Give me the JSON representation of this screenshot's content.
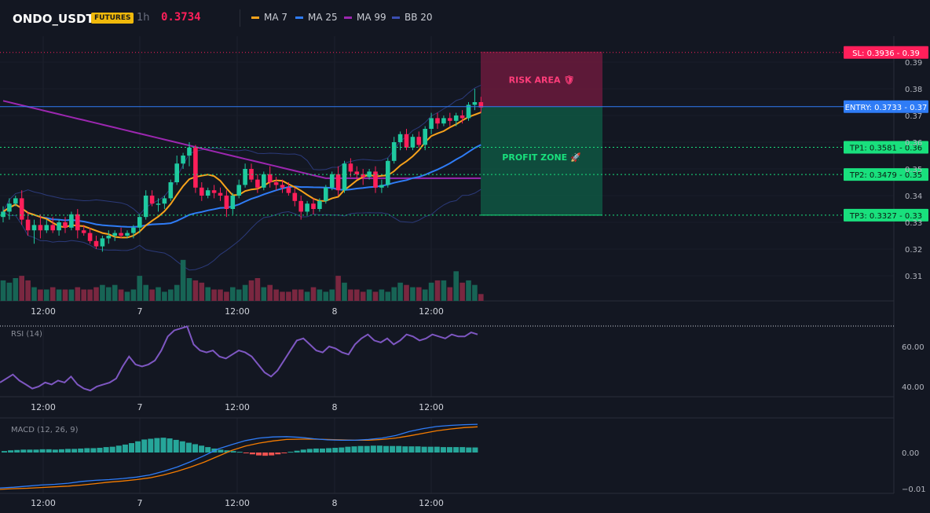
{
  "header": {
    "symbol": "ONDO_USDT",
    "badge": "FUTURES",
    "timeframe": "1h",
    "price": "0.3734",
    "legend": [
      {
        "label": "MA 7",
        "color": "#f7a21b"
      },
      {
        "label": "MA 25",
        "color": "#2f7cf6"
      },
      {
        "label": "MA 99",
        "color": "#9c27b0"
      },
      {
        "label": "BB 20",
        "color": "#3b4fb3"
      }
    ]
  },
  "chart_data": [
    {
      "type": "candlestick",
      "ylim": [
        0.3,
        0.4
      ],
      "y_ticks": [
        "0.39",
        "0.38",
        "0.37",
        "0.36",
        "0.35",
        "0.34",
        "0.33",
        "0.32",
        "0.31"
      ],
      "x_ticks": [
        "12:00",
        "7",
        "12:00",
        "8",
        "12:00"
      ],
      "candles": [
        [
          0.332,
          0.336,
          0.33,
          0.334
        ],
        [
          0.334,
          0.339,
          0.331,
          0.337
        ],
        [
          0.337,
          0.34,
          0.336,
          0.339
        ],
        [
          0.339,
          0.342,
          0.329,
          0.331
        ],
        [
          0.331,
          0.334,
          0.325,
          0.327
        ],
        [
          0.327,
          0.331,
          0.322,
          0.329
        ],
        [
          0.329,
          0.333,
          0.324,
          0.327
        ],
        [
          0.327,
          0.331,
          0.326,
          0.329
        ],
        [
          0.329,
          0.332,
          0.326,
          0.327
        ],
        [
          0.327,
          0.331,
          0.325,
          0.33
        ],
        [
          0.33,
          0.332,
          0.326,
          0.328
        ],
        [
          0.328,
          0.334,
          0.327,
          0.333
        ],
        [
          0.333,
          0.335,
          0.324,
          0.327
        ],
        [
          0.327,
          0.329,
          0.325,
          0.326
        ],
        [
          0.326,
          0.328,
          0.322,
          0.323
        ],
        [
          0.323,
          0.325,
          0.32,
          0.321
        ],
        [
          0.321,
          0.325,
          0.319,
          0.324
        ],
        [
          0.324,
          0.327,
          0.322,
          0.325
        ],
        [
          0.325,
          0.327,
          0.323,
          0.326
        ],
        [
          0.326,
          0.328,
          0.324,
          0.325
        ],
        [
          0.325,
          0.327,
          0.324,
          0.326
        ],
        [
          0.326,
          0.329,
          0.324,
          0.328
        ],
        [
          0.328,
          0.333,
          0.326,
          0.332
        ],
        [
          0.332,
          0.342,
          0.331,
          0.34
        ],
        [
          0.34,
          0.342,
          0.336,
          0.337
        ],
        [
          0.337,
          0.339,
          0.334,
          0.337
        ],
        [
          0.337,
          0.34,
          0.335,
          0.339
        ],
        [
          0.339,
          0.346,
          0.338,
          0.345
        ],
        [
          0.345,
          0.355,
          0.344,
          0.352
        ],
        [
          0.352,
          0.356,
          0.35,
          0.355
        ],
        [
          0.355,
          0.36,
          0.351,
          0.358
        ],
        [
          0.358,
          0.359,
          0.341,
          0.343
        ],
        [
          0.343,
          0.345,
          0.338,
          0.34
        ],
        [
          0.34,
          0.343,
          0.339,
          0.342
        ],
        [
          0.342,
          0.344,
          0.339,
          0.341
        ],
        [
          0.341,
          0.343,
          0.338,
          0.34
        ],
        [
          0.34,
          0.342,
          0.332,
          0.335
        ],
        [
          0.335,
          0.341,
          0.333,
          0.34
        ],
        [
          0.34,
          0.346,
          0.339,
          0.344
        ],
        [
          0.344,
          0.352,
          0.343,
          0.35
        ],
        [
          0.35,
          0.352,
          0.345,
          0.346
        ],
        [
          0.346,
          0.348,
          0.341,
          0.343
        ],
        [
          0.343,
          0.349,
          0.342,
          0.348
        ],
        [
          0.348,
          0.351,
          0.343,
          0.345
        ],
        [
          0.345,
          0.347,
          0.342,
          0.344
        ],
        [
          0.344,
          0.346,
          0.341,
          0.343
        ],
        [
          0.343,
          0.345,
          0.34,
          0.341
        ],
        [
          0.341,
          0.343,
          0.336,
          0.338
        ],
        [
          0.338,
          0.34,
          0.331,
          0.334
        ],
        [
          0.334,
          0.338,
          0.333,
          0.337
        ],
        [
          0.337,
          0.339,
          0.333,
          0.335
        ],
        [
          0.335,
          0.339,
          0.334,
          0.338
        ],
        [
          0.338,
          0.344,
          0.337,
          0.343
        ],
        [
          0.343,
          0.349,
          0.342,
          0.348
        ],
        [
          0.348,
          0.351,
          0.34,
          0.342
        ],
        [
          0.342,
          0.353,
          0.341,
          0.352
        ],
        [
          0.352,
          0.354,
          0.347,
          0.349
        ],
        [
          0.349,
          0.351,
          0.346,
          0.348
        ],
        [
          0.348,
          0.35,
          0.344,
          0.347
        ],
        [
          0.347,
          0.35,
          0.346,
          0.349
        ],
        [
          0.349,
          0.351,
          0.341,
          0.343
        ],
        [
          0.343,
          0.346,
          0.341,
          0.344
        ],
        [
          0.344,
          0.354,
          0.343,
          0.353
        ],
        [
          0.353,
          0.362,
          0.352,
          0.36
        ],
        [
          0.36,
          0.364,
          0.357,
          0.363
        ],
        [
          0.363,
          0.365,
          0.357,
          0.358
        ],
        [
          0.358,
          0.363,
          0.357,
          0.362
        ],
        [
          0.362,
          0.364,
          0.358,
          0.359
        ],
        [
          0.359,
          0.366,
          0.357,
          0.365
        ],
        [
          0.365,
          0.371,
          0.363,
          0.369
        ],
        [
          0.369,
          0.371,
          0.365,
          0.367
        ],
        [
          0.367,
          0.37,
          0.366,
          0.369
        ],
        [
          0.369,
          0.371,
          0.366,
          0.368
        ],
        [
          0.368,
          0.371,
          0.366,
          0.37
        ],
        [
          0.37,
          0.372,
          0.367,
          0.369
        ],
        [
          0.369,
          0.375,
          0.368,
          0.374
        ],
        [
          0.374,
          0.38,
          0.372,
          0.375
        ],
        [
          0.375,
          0.377,
          0.371,
          0.373
        ]
      ],
      "volume": [
        9,
        8,
        10,
        11,
        9,
        6,
        5,
        5,
        6,
        5,
        5,
        5,
        6,
        5,
        5,
        6,
        7,
        6,
        7,
        5,
        4,
        5,
        11,
        7,
        5,
        6,
        4,
        5,
        7,
        18,
        10,
        9,
        8,
        6,
        5,
        5,
        4,
        6,
        5,
        7,
        9,
        10,
        6,
        7,
        5,
        4,
        4,
        5,
        5,
        4,
        6,
        5,
        4,
        5,
        11,
        8,
        5,
        5,
        4,
        5,
        4,
        5,
        4,
        6,
        8,
        7,
        6,
        6,
        5,
        8,
        9,
        9,
        6,
        13,
        8,
        9,
        7,
        3
      ],
      "ma7_last": 0.3705,
      "ma25_last": 0.3555,
      "ma99_last": 0.3465
    },
    {
      "type": "line",
      "title": "RSI (14)",
      "ylim": [
        34,
        73
      ],
      "y_ticks": [
        "60.00",
        "40.00"
      ],
      "x_ticks": [
        "12:00",
        "7",
        "12:00",
        "8",
        "12:00"
      ],
      "values": [
        42,
        44,
        46,
        43,
        41,
        39,
        40,
        42,
        41,
        43,
        42,
        45,
        41,
        39,
        38,
        40,
        41,
        42,
        44,
        50,
        55,
        51,
        50,
        51,
        53,
        58,
        65,
        68,
        69,
        70,
        61,
        58,
        57,
        58,
        55,
        54,
        56,
        58,
        57,
        55,
        51,
        47,
        45,
        48,
        53,
        58,
        63,
        64,
        61,
        58,
        57,
        60,
        59,
        57,
        56,
        61,
        64,
        66,
        63,
        62,
        64,
        61,
        63,
        66,
        65,
        63,
        64,
        66,
        65,
        64,
        66,
        65,
        65,
        67,
        66
      ]
    },
    {
      "type": "bar+line",
      "title": "MACD (12, 26, 9)",
      "ylim": [
        -0.011,
        0.009
      ],
      "y_ticks": [
        "0.00",
        "−0.01"
      ],
      "x_ticks": [
        "12:00",
        "7",
        "12:00",
        "8",
        "12:00"
      ],
      "histogram": [
        0.0004,
        0.0006,
        0.0007,
        0.0008,
        0.0008,
        0.0008,
        0.0009,
        0.0009,
        0.0008,
        0.0009,
        0.001,
        0.001,
        0.0011,
        0.0012,
        0.0012,
        0.0013,
        0.0015,
        0.0016,
        0.0019,
        0.0022,
        0.0026,
        0.0031,
        0.0036,
        0.0038,
        0.004,
        0.0041,
        0.0039,
        0.0035,
        0.0031,
        0.0027,
        0.0023,
        0.0019,
        0.0015,
        0.0011,
        0.0008,
        0.0006,
        0.0004,
        0.0002,
        -0.0002,
        -0.0005,
        -0.0008,
        -0.0009,
        -0.0008,
        -0.0005,
        -0.0002,
        0.0002,
        0.0005,
        0.0008,
        0.001,
        0.0011,
        0.0011,
        0.0012,
        0.0013,
        0.0014,
        0.0016,
        0.0017,
        0.0018,
        0.0018,
        0.0019,
        0.0019,
        0.0018,
        0.0018,
        0.0018,
        0.0017,
        0.0017,
        0.0017,
        0.0016,
        0.0016,
        0.0016,
        0.0015,
        0.0015,
        0.0015,
        0.0015,
        0.0014,
        0.0014
      ],
      "macd": [
        -0.0098,
        -0.0096,
        -0.0093,
        -0.009,
        -0.0088,
        -0.0085,
        -0.008,
        -0.0077,
        -0.0075,
        -0.0072,
        -0.0068,
        -0.0062,
        -0.0052,
        -0.004,
        -0.0025,
        -0.0008,
        0.001,
        0.0022,
        0.0033,
        0.004,
        0.0043,
        0.0044,
        0.0042,
        0.0038,
        0.0035,
        0.0034,
        0.0034,
        0.0036,
        0.004,
        0.0047,
        0.0058,
        0.0066,
        0.0072,
        0.0075,
        0.0077,
        0.0078
      ],
      "signal": [
        -0.0102,
        -0.01,
        -0.0099,
        -0.0097,
        -0.0095,
        -0.0093,
        -0.009,
        -0.0086,
        -0.0082,
        -0.0079,
        -0.0075,
        -0.007,
        -0.0062,
        -0.0052,
        -0.004,
        -0.0026,
        -0.001,
        0.0006,
        0.0018,
        0.0026,
        0.0032,
        0.0036,
        0.0037,
        0.0037,
        0.0036,
        0.0035,
        0.0034,
        0.0034,
        0.0036,
        0.004,
        0.0046,
        0.0053,
        0.006,
        0.0065,
        0.0069,
        0.0071
      ]
    }
  ],
  "levels": {
    "sl": {
      "label": "SL: 0.3936 - 0.39",
      "price": 0.3936,
      "color": "#ff1f5a"
    },
    "entry": {
      "label": "ENTRY: 0.3733 - 0.37",
      "price": 0.3733,
      "color": "#2f7cf6"
    },
    "tp": [
      {
        "label": "TP1: 0.3581 - 0.36",
        "price": 0.3581
      },
      {
        "label": "TP2: 0.3479 - 0.35",
        "price": 0.3479
      },
      {
        "label": "TP3: 0.3327 - 0.33",
        "price": 0.3327
      }
    ],
    "tp_color": "#19e07d"
  },
  "zones": {
    "risk_label": "RISK AREA 🛡",
    "profit_label": "PROFIT ZONE 🚀"
  }
}
